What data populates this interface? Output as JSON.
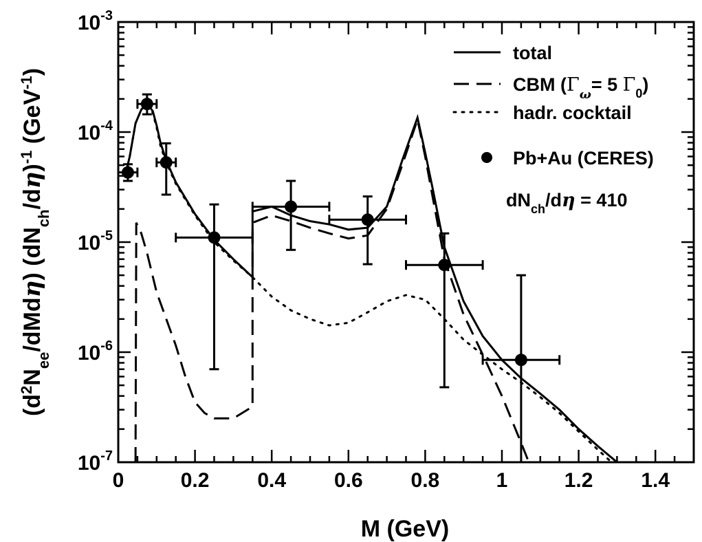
{
  "chart_data": {
    "type": "line",
    "title": "",
    "xlabel": "M (GeV)",
    "ylabel_parts": [
      "(d",
      "2",
      "N",
      "ee",
      "/dMd",
      "η",
      ") (dN",
      "ch",
      "/d",
      "η",
      ")",
      "-1",
      " (GeV",
      "-1",
      ")"
    ],
    "xlim": [
      0,
      1.5
    ],
    "ylim": [
      1e-07,
      0.001
    ],
    "yscale": "log",
    "grid": false,
    "legend_position": "top-right",
    "x_ticks": [
      "0",
      "0.2",
      "0.4",
      "0.6",
      "0.8",
      "1",
      "1.2",
      "1.4"
    ],
    "x_tick_values": [
      0,
      0.2,
      0.4,
      0.6,
      0.8,
      1.0,
      1.2,
      1.4
    ],
    "y_ticks": [
      {
        "base": "10",
        "exp": "-7",
        "value": 1e-07
      },
      {
        "base": "10",
        "exp": "-6",
        "value": 1e-06
      },
      {
        "base": "10",
        "exp": "-5",
        "value": 1e-05
      },
      {
        "base": "10",
        "exp": "-4",
        "value": 0.0001
      },
      {
        "base": "10",
        "exp": "-3",
        "value": 0.001
      }
    ],
    "legend": {
      "total": "total",
      "cbm_prefix": "CBM (",
      "cbm_gamma": "Γ",
      "cbm_omega": "ω",
      "cbm_mid": "= 5 ",
      "cbm_gamma2": "Γ",
      "cbm_zero": "0",
      "cbm_suffix": ")",
      "cocktail": "hadr. cocktail",
      "data": "Pb+Au (CERES)",
      "annot_prefix": "dN",
      "annot_sub": "ch",
      "annot_mid": "/d",
      "annot_eta": "η",
      "annot_value": " = 410"
    },
    "series": [
      {
        "name": "total",
        "style": "solid",
        "points": [
          [
            0.02,
            4.3e-05
          ],
          [
            0.03,
            6e-05
          ],
          [
            0.045,
            0.00012
          ],
          [
            0.06,
            0.00016
          ],
          [
            0.075,
            0.000182
          ],
          [
            0.09,
            0.000155
          ],
          [
            0.1,
            0.000115
          ],
          [
            0.11,
            8e-05
          ],
          [
            0.125,
            5.5e-05
          ],
          [
            0.15,
            3.5e-05
          ],
          [
            0.2,
            1.8e-05
          ],
          [
            0.25,
            1.05e-05
          ],
          [
            0.3,
            7e-06
          ],
          [
            0.35,
            4.8e-06
          ],
          [
            0.35,
            1.9e-05
          ],
          [
            0.4,
            2.1e-05
          ],
          [
            0.45,
            1.75e-05
          ],
          [
            0.5,
            1.55e-05
          ],
          [
            0.55,
            1.45e-05
          ],
          [
            0.6,
            1.3e-05
          ],
          [
            0.65,
            1.35e-05
          ],
          [
            0.7,
            2.1e-05
          ],
          [
            0.74,
            5.5e-05
          ],
          [
            0.78,
            0.000135
          ],
          [
            0.8,
            6.5e-05
          ],
          [
            0.82,
            3e-05
          ],
          [
            0.85,
            9e-06
          ],
          [
            0.9,
            2.9e-06
          ],
          [
            0.95,
            1.4e-06
          ],
          [
            1.0,
            8.5e-07
          ],
          [
            1.05,
            5.8e-07
          ],
          [
            1.1,
            4.2e-07
          ],
          [
            1.15,
            3e-07
          ],
          [
            1.2,
            2e-07
          ],
          [
            1.25,
            1.4e-07
          ],
          [
            1.3,
            1e-07
          ]
        ]
      },
      {
        "name": "CBM",
        "style": "dashed",
        "points": [
          [
            0.045,
            1e-07
          ],
          [
            0.047,
            1.5e-05
          ],
          [
            0.06,
            1.2e-05
          ],
          [
            0.075,
            8e-06
          ],
          [
            0.1,
            3.5e-06
          ],
          [
            0.125,
            2e-06
          ],
          [
            0.15,
            1.15e-06
          ],
          [
            0.175,
            6e-07
          ],
          [
            0.2,
            3.5e-07
          ],
          [
            0.225,
            2.8e-07
          ],
          [
            0.25,
            2.5e-07
          ],
          [
            0.3,
            2.5e-07
          ],
          [
            0.35,
            3.2e-07
          ],
          [
            0.35,
            1.5e-05
          ],
          [
            0.4,
            1.75e-05
          ],
          [
            0.45,
            1.55e-05
          ],
          [
            0.5,
            1.35e-05
          ],
          [
            0.55,
            1.2e-05
          ],
          [
            0.6,
            1.08e-05
          ],
          [
            0.65,
            1.15e-05
          ],
          [
            0.7,
            2e-05
          ],
          [
            0.74,
            5e-05
          ],
          [
            0.78,
            0.00013
          ],
          [
            0.8,
            6e-05
          ],
          [
            0.82,
            2.5e-05
          ],
          [
            0.85,
            7e-06
          ],
          [
            0.9,
            2.2e-06
          ],
          [
            0.95,
            9.5e-07
          ],
          [
            1.0,
            4e-07
          ],
          [
            1.05,
            1.5e-07
          ],
          [
            1.07,
            1e-07
          ]
        ]
      },
      {
        "name": "hadr. cocktail",
        "style": "dotted",
        "points": [
          [
            0.02,
            4.3e-05
          ],
          [
            0.03,
            6e-05
          ],
          [
            0.045,
            0.00012
          ],
          [
            0.06,
            0.00016
          ],
          [
            0.075,
            0.00018
          ],
          [
            0.09,
            0.00015
          ],
          [
            0.1,
            0.00011
          ],
          [
            0.11,
            7.5e-05
          ],
          [
            0.125,
            5.3e-05
          ],
          [
            0.15,
            3.4e-05
          ],
          [
            0.2,
            1.75e-05
          ],
          [
            0.25,
            1e-05
          ],
          [
            0.3,
            6.8e-06
          ],
          [
            0.35,
            4.8e-06
          ],
          [
            0.4,
            3.2e-06
          ],
          [
            0.45,
            2.4e-06
          ],
          [
            0.5,
            2e-06
          ],
          [
            0.55,
            1.75e-06
          ],
          [
            0.6,
            1.85e-06
          ],
          [
            0.65,
            2.3e-06
          ],
          [
            0.7,
            2.9e-06
          ],
          [
            0.75,
            3.3e-06
          ],
          [
            0.8,
            3e-06
          ],
          [
            0.85,
            2e-06
          ],
          [
            0.9,
            1.3e-06
          ],
          [
            0.95,
            9.5e-07
          ],
          [
            1.0,
            7e-07
          ],
          [
            1.05,
            5.3e-07
          ],
          [
            1.1,
            3.9e-07
          ],
          [
            1.15,
            2.8e-07
          ],
          [
            1.2,
            1.9e-07
          ],
          [
            1.25,
            1.3e-07
          ],
          [
            1.3,
            9e-08
          ]
        ]
      }
    ],
    "data_points": [
      {
        "x": 0.025,
        "y": 4.3e-05,
        "xerr": 0.025,
        "ylo": 3.6e-05,
        "yhi": 5.1e-05
      },
      {
        "x": 0.075,
        "y": 0.00018,
        "xerr": 0.025,
        "ylo": 0.000145,
        "yhi": 0.00022
      },
      {
        "x": 0.125,
        "y": 5.3e-05,
        "xerr": 0.025,
        "ylo": 2.7e-05,
        "yhi": 7.9e-05
      },
      {
        "x": 0.25,
        "y": 1.1e-05,
        "xerr": 0.1,
        "ylo": 7e-07,
        "yhi": 2.2e-05
      },
      {
        "x": 0.45,
        "y": 2.1e-05,
        "xerr": 0.1,
        "ylo": 8.5e-06,
        "yhi": 3.6e-05
      },
      {
        "x": 0.65,
        "y": 1.6e-05,
        "xerr": 0.1,
        "ylo": 6.3e-06,
        "yhi": 2.6e-05
      },
      {
        "x": 0.85,
        "y": 6.2e-06,
        "xerr": 0.1,
        "ylo": 4.8e-07,
        "yhi": 1.2e-05
      },
      {
        "x": 1.05,
        "y": 8.5e-07,
        "xerr": 0.1,
        "ylo": 1e-07,
        "yhi": 5e-06
      }
    ]
  }
}
